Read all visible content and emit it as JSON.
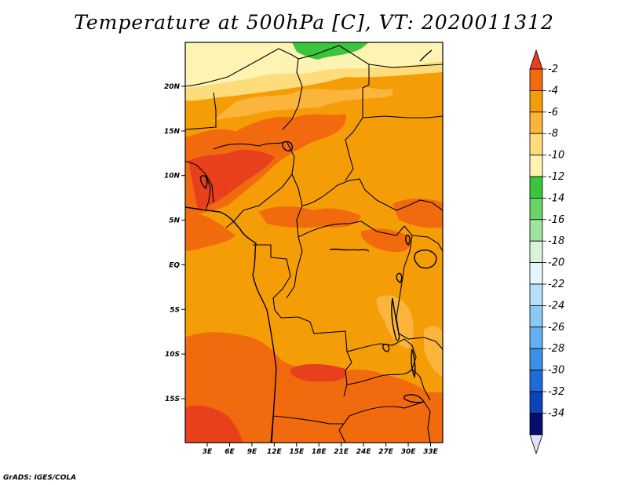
{
  "title": "Temperature at 500hPa [C], VT: 2020011312",
  "credit": "GrADS: IGES/COLA",
  "map": {
    "lat_ticks": [
      "20N",
      "15N",
      "10N",
      "5N",
      "EQ",
      "5S",
      "10S",
      "15S"
    ],
    "lon_ticks": [
      "3E",
      "6E",
      "9E",
      "12E",
      "15E",
      "18E",
      "21E",
      "24E",
      "27E",
      "30E",
      "33E"
    ]
  },
  "colorbar": {
    "labels": [
      "-2",
      "-4",
      "-6",
      "-8",
      "-10",
      "-12",
      "-14",
      "-16",
      "-18",
      "-20",
      "-22",
      "-24",
      "-26",
      "-28",
      "-30",
      "-32",
      "-34"
    ],
    "colors": [
      "#e8401c",
      "#f26a0e",
      "#f59d06",
      "#fbb53c",
      "#fddc7c",
      "#fdf4b4",
      "#3cc43c",
      "#6ad46a",
      "#9ee49e",
      "#d8f4d8",
      "#e6f6fc",
      "#b4e0f8",
      "#8ccaf4",
      "#64b0f0",
      "#3c90e8",
      "#1e6cd8",
      "#0c44b8",
      "#080e6c",
      "#e0e4f8"
    ]
  }
}
